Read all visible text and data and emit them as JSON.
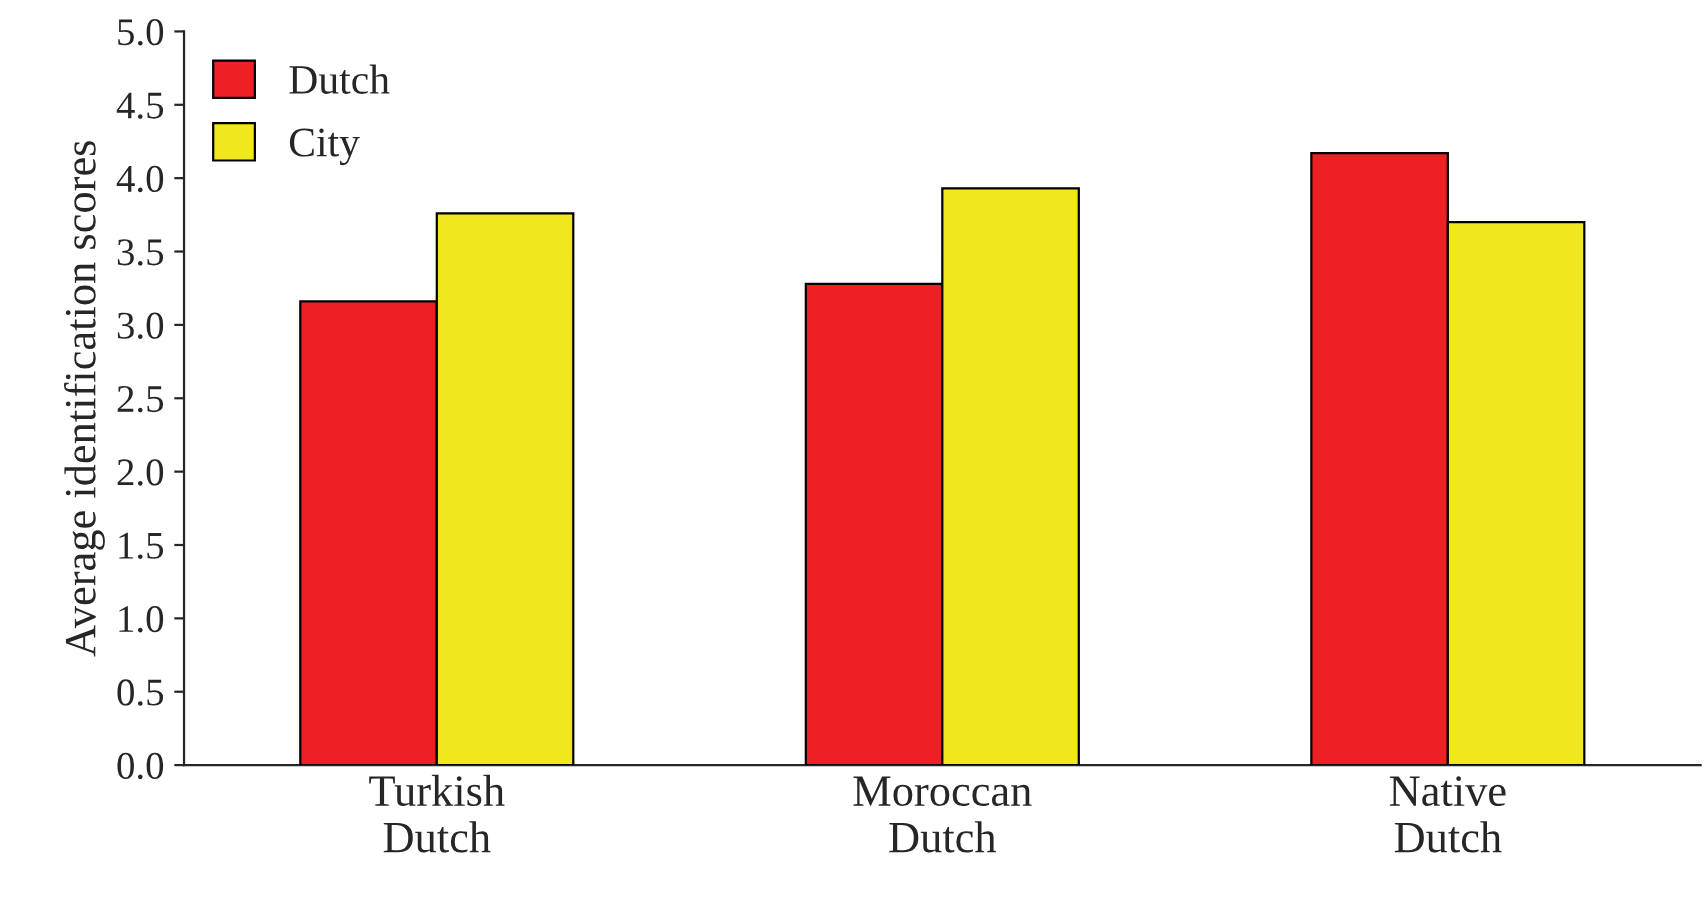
{
  "chart_data": {
    "type": "bar",
    "ylabel": "Average identification scores",
    "categories": [
      "Turkish\nDutch",
      "Moroccan\nDutch",
      "Native\nDutch"
    ],
    "series": [
      {
        "name": "Dutch",
        "color": "#ed2024",
        "values": [
          3.16,
          3.28,
          4.17
        ]
      },
      {
        "name": "City",
        "color": "#f0e81c",
        "values": [
          3.76,
          3.93,
          3.7
        ]
      }
    ],
    "ylim": [
      0,
      5
    ],
    "yticks": [
      {
        "value": 0,
        "label": "0.0"
      },
      {
        "value": 0.5,
        "label": "0.5"
      },
      {
        "value": 1,
        "label": "1.0"
      },
      {
        "value": 1.5,
        "label": "1.5"
      },
      {
        "value": 2,
        "label": "2.0"
      },
      {
        "value": 2.5,
        "label": "2.5"
      },
      {
        "value": 3,
        "label": "3.0"
      },
      {
        "value": 3.5,
        "label": "3.5"
      },
      {
        "value": 4,
        "label": "4.0"
      },
      {
        "value": 4.5,
        "label": "4.5"
      },
      {
        "value": 5,
        "label": "5.0"
      }
    ],
    "grid": false,
    "legend": "top left"
  }
}
